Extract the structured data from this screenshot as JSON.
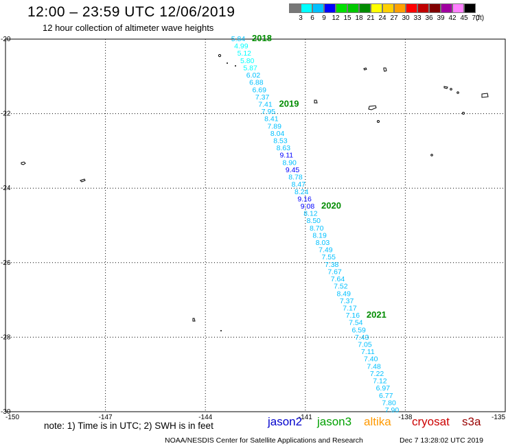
{
  "title": "12:00 – 23:59 UTC 12/06/2019",
  "subtitle": "12 hour collection of altimeter wave heights",
  "legend": {
    "labels": [
      "3",
      "6",
      "9",
      "12",
      "15",
      "18",
      "21",
      "24",
      "27",
      "30",
      "33",
      "36",
      "39",
      "42",
      "45",
      "70"
    ],
    "unit": "(ft)",
    "colors": [
      "#777777",
      "#00ffff",
      "#00c0ff",
      "#0000ff",
      "#00e000",
      "#00c800",
      "#008c00",
      "#ffff00",
      "#ffd000",
      "#ffa000",
      "#ff0000",
      "#c00000",
      "#800000",
      "#a000a0",
      "#ff80ff",
      "#000000"
    ]
  },
  "map": {
    "lon_range": [
      -150,
      -135
    ],
    "lat_range": [
      -30,
      -20
    ],
    "x_ticks": [
      "-150",
      "-147",
      "-144",
      "-141",
      "-138",
      "-135"
    ],
    "y_ticks": [
      "-20",
      "-22",
      "-24",
      "-26",
      "-28",
      "-30"
    ],
    "hour_labels": [
      "2018",
      "2019",
      "2020",
      "2021"
    ],
    "track": [
      {
        "value": "5.84",
        "color": "#00c0ff"
      },
      {
        "value": "4.99",
        "color": "#00ffff"
      },
      {
        "value": "5.12",
        "color": "#00ffff"
      },
      {
        "value": "5.80",
        "color": "#00ffff"
      },
      {
        "value": "5.87",
        "color": "#00ffff"
      },
      {
        "value": "6.02",
        "color": "#00c0ff"
      },
      {
        "value": "6.88",
        "color": "#00c0ff"
      },
      {
        "value": "6.69",
        "color": "#00c0ff"
      },
      {
        "value": "7.37",
        "color": "#00c0ff"
      },
      {
        "value": "7.41",
        "color": "#00c0ff"
      },
      {
        "value": "7.95",
        "color": "#00c0ff"
      },
      {
        "value": "8.41",
        "color": "#00c0ff"
      },
      {
        "value": "7.89",
        "color": "#00c0ff"
      },
      {
        "value": "8.04",
        "color": "#00c0ff"
      },
      {
        "value": "8.53",
        "color": "#00c0ff"
      },
      {
        "value": "8.63",
        "color": "#00c0ff"
      },
      {
        "value": "9.11",
        "color": "#0000ff"
      },
      {
        "value": "8.90",
        "color": "#00c0ff"
      },
      {
        "value": "9.45",
        "color": "#0000ff"
      },
      {
        "value": "8.78",
        "color": "#00c0ff"
      },
      {
        "value": "8.47",
        "color": "#00c0ff"
      },
      {
        "value": "8.24",
        "color": "#00c0ff"
      },
      {
        "value": "9.16",
        "color": "#0000ff"
      },
      {
        "value": "9.08",
        "color": "#0000ff"
      },
      {
        "value": "8.12",
        "color": "#00c0ff"
      },
      {
        "value": "8.50",
        "color": "#00c0ff"
      },
      {
        "value": "8.70",
        "color": "#00c0ff"
      },
      {
        "value": "8.19",
        "color": "#00c0ff"
      },
      {
        "value": "8.03",
        "color": "#00c0ff"
      },
      {
        "value": "7.49",
        "color": "#00c0ff"
      },
      {
        "value": "7.55",
        "color": "#00c0ff"
      },
      {
        "value": "7.38",
        "color": "#00c0ff"
      },
      {
        "value": "7.67",
        "color": "#00c0ff"
      },
      {
        "value": "7.64",
        "color": "#00c0ff"
      },
      {
        "value": "7.52",
        "color": "#00c0ff"
      },
      {
        "value": "8.49",
        "color": "#00c0ff"
      },
      {
        "value": "7.37",
        "color": "#00c0ff"
      },
      {
        "value": "7.17",
        "color": "#00c0ff"
      },
      {
        "value": "7.16",
        "color": "#00c0ff"
      },
      {
        "value": "7.54",
        "color": "#00c0ff"
      },
      {
        "value": "6.59",
        "color": "#00c0ff"
      },
      {
        "value": "7.43",
        "color": "#00c0ff"
      },
      {
        "value": "7.05",
        "color": "#00c0ff"
      },
      {
        "value": "7.11",
        "color": "#00c0ff"
      },
      {
        "value": "7.40",
        "color": "#00c0ff"
      },
      {
        "value": "7.48",
        "color": "#00c0ff"
      },
      {
        "value": "7.22",
        "color": "#00c0ff"
      },
      {
        "value": "7.12",
        "color": "#00c0ff"
      },
      {
        "value": "6.97",
        "color": "#00c0ff"
      },
      {
        "value": "6.77",
        "color": "#00c0ff"
      },
      {
        "value": "7.80",
        "color": "#00c0ff"
      },
      {
        "value": "7.90",
        "color": "#00c0ff"
      }
    ]
  },
  "note": "note: 1) Time is in UTC; 2) SWH is in feet",
  "satellites": [
    {
      "name": "jason2",
      "color": "#0000cc"
    },
    {
      "name": "jason3",
      "color": "#00a000"
    },
    {
      "name": "altika",
      "color": "#ff9900"
    },
    {
      "name": "cryosat",
      "color": "#cc0000"
    },
    {
      "name": "s3a",
      "color": "#990000"
    }
  ],
  "footer": {
    "left": "NOAA/NESDIS Center for Satellite Applications and Research",
    "right": "Dec  7 13:28:02 UTC 2019"
  }
}
